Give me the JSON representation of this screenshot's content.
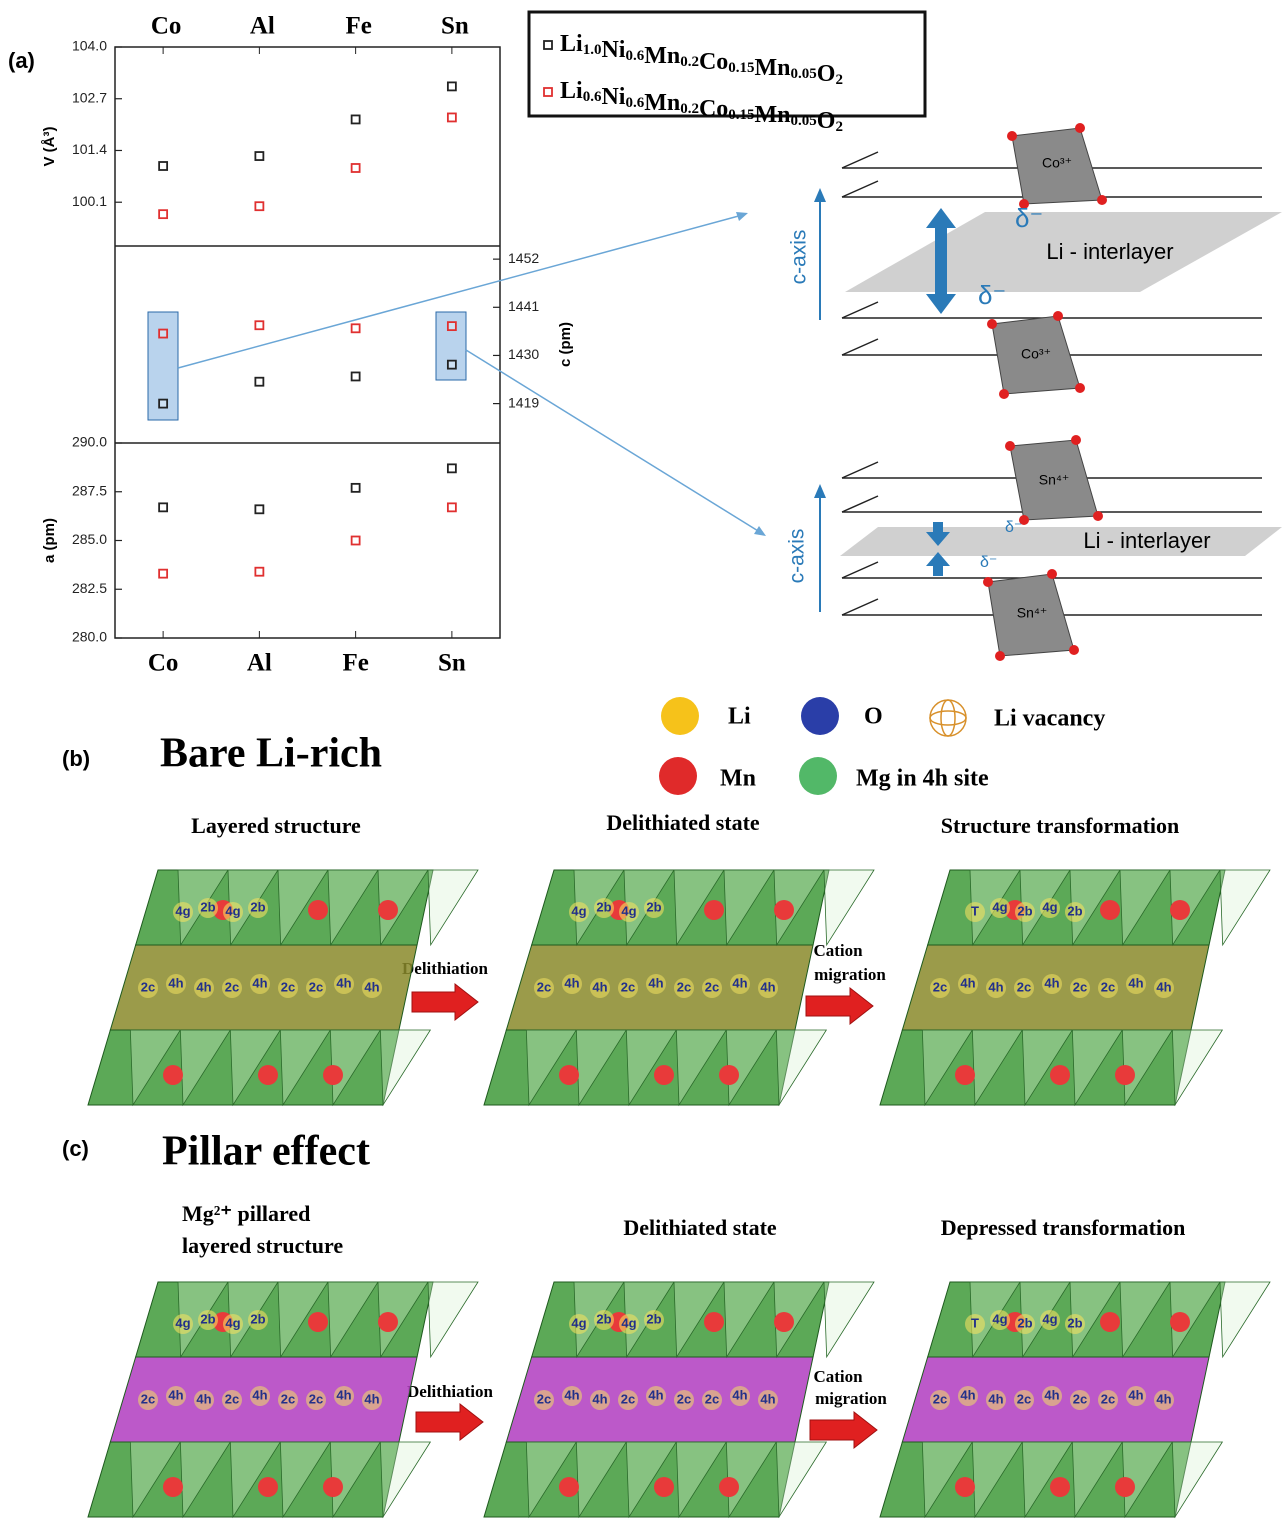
{
  "figure_label_a": "(a)",
  "chart_data": [
    {
      "type": "scatter",
      "y_axis_side": "left",
      "ylabel": "V (Å³)",
      "categories": [
        "Co",
        "Al",
        "Fe",
        "Sn"
      ],
      "ylim": [
        99.0,
        104.0
      ],
      "yticks": [
        100.1,
        101.4,
        102.7,
        {
          "value": 104.0,
          "label": "104.0"
        }
      ],
      "series": [
        {
          "name": "Li1.0Ni0.6Mn0.2Co0.15Mn0.05O2",
          "color": "#222222",
          "values": [
            101.01,
            101.26,
            102.18,
            103.01
          ]
        },
        {
          "name": "Li0.6Ni0.6Mn0.2Co0.15Mn0.05O2",
          "color": "#e03030",
          "values": [
            99.8,
            100.0,
            100.96,
            102.23
          ]
        }
      ]
    },
    {
      "type": "scatter",
      "y_axis_side": "right",
      "ylabel": "c (pm)",
      "ylim": [
        1410,
        1455
      ],
      "yticks": [
        1419,
        1430,
        1441,
        1452
      ],
      "series": [
        {
          "color": "#222222",
          "values": [
            1419.0,
            1424.0,
            1425.2,
            1427.9
          ]
        },
        {
          "color": "#e03030",
          "values": [
            1435.0,
            1436.9,
            1436.2,
            1436.7
          ]
        }
      ]
    },
    {
      "type": "scatter",
      "y_axis_side": "left",
      "ylabel": "a (pm)",
      "categories": [
        "Co",
        "Al",
        "Fe",
        "Sn"
      ],
      "ylim": [
        280,
        290
      ],
      "yticks": [
        {
          "value": 280,
          "label": "280.0"
        },
        282.5,
        {
          "value": 285,
          "label": "285.0"
        },
        287.5,
        {
          "value": 290,
          "label": "290.0"
        }
      ],
      "series": [
        {
          "color": "#222222",
          "values": [
            286.7,
            286.6,
            287.7,
            288.7
          ]
        },
        {
          "color": "#e03030",
          "values": [
            283.3,
            283.4,
            285.0,
            286.7
          ]
        }
      ]
    }
  ],
  "schematic": {
    "axis_label": "c-axis",
    "interlayer": "Li - interlayer",
    "delta": "δ⁻",
    "co_ion": "Co³⁺",
    "sn_ion": "Sn⁴⁺"
  },
  "legend": {
    "li": "Li",
    "o": "O",
    "vacancy": "Li vacancy",
    "mn": "Mn",
    "mg": "Mg in 4h site"
  },
  "panel_b": {
    "label": "(b)",
    "title": "Bare Li-rich",
    "captions": [
      "Layered structure",
      "Delithiated state",
      "Structure transformation"
    ],
    "arrow_1": "Delithiation",
    "arrow_2": [
      "Cation",
      "migration"
    ],
    "structures": [
      {
        "top": [
          "4g",
          "2b",
          "4g",
          "2b"
        ],
        "mid": [
          "2c",
          "4h",
          "4h",
          "2c",
          "4h",
          "2c",
          "2c",
          "4h",
          "4h"
        ]
      },
      {
        "top": [
          "4g",
          "2b",
          "4g",
          "2b"
        ],
        "mid": [
          "2c",
          "4h",
          "4h",
          "2c",
          "4h",
          "2c",
          "2c",
          "4h",
          "4h"
        ]
      },
      {
        "top": [
          "T",
          "4g",
          "2b",
          "4g",
          "2b"
        ],
        "mid": [
          "2c",
          "4h",
          "4h",
          "2c",
          "4h",
          "2c",
          "2c",
          "4h",
          "4h"
        ]
      }
    ]
  },
  "panel_c": {
    "label": "(c)",
    "title": "Pillar effect",
    "captions": [
      [
        "Mg²⁺ pillared",
        "layered structure"
      ],
      "Delithiated state",
      "Depressed transformation"
    ],
    "arrow_1": "Delithiation",
    "arrow_2": [
      "Cation",
      "migration"
    ],
    "structures": [
      {
        "top": [
          "4g",
          "2b",
          "4g",
          "2b"
        ],
        "mid": [
          "2c",
          "4h",
          "4h",
          "2c",
          "4h",
          "2c",
          "2c",
          "4h",
          "4h"
        ]
      },
      {
        "top": [
          "4g",
          "2b",
          "4g",
          "2b"
        ],
        "mid": [
          "2c",
          "4h",
          "4h",
          "2c",
          "4h",
          "2c",
          "2c",
          "4h",
          "4h"
        ]
      },
      {
        "top": [
          "T",
          "4g",
          "2b",
          "4g",
          "2b"
        ],
        "mid": [
          "2c",
          "4h",
          "4h",
          "2c",
          "4h",
          "2c",
          "2c",
          "4h",
          "4h"
        ]
      }
    ]
  }
}
